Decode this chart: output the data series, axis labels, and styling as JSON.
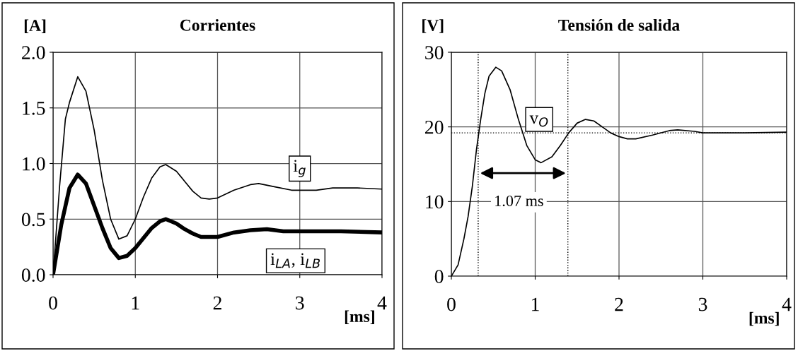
{
  "chart_data": [
    {
      "type": "line",
      "title": "Corrientes",
      "ylabel": "[A]",
      "xlabel": "[ms]",
      "xlim": [
        0,
        4
      ],
      "xticks": [
        0,
        1,
        2,
        3,
        4
      ],
      "ylim": [
        0,
        2
      ],
      "yticks": [
        {
          "value": 0,
          "label": "0.0"
        },
        0.5,
        {
          "value": 1,
          "label": "1.0"
        },
        1.5,
        {
          "value": 2,
          "label": "2.0"
        }
      ],
      "grid": true,
      "series": [
        {
          "color": "#000000",
          "x": [
            0,
            0.08,
            0.15,
            0.2,
            0.3,
            0.4,
            0.5,
            0.6,
            0.7,
            0.8,
            0.9,
            1.0,
            1.1,
            1.2,
            1.3,
            1.37,
            1.5,
            1.6,
            1.7,
            1.8,
            1.9,
            2.0,
            2.2,
            2.4,
            2.5,
            2.7,
            2.9,
            3.2,
            3.4,
            3.7,
            4
          ],
          "values": [
            0,
            0.8,
            1.4,
            1.55,
            1.78,
            1.65,
            1.3,
            0.85,
            0.5,
            0.32,
            0.35,
            0.5,
            0.7,
            0.87,
            0.97,
            0.99,
            0.93,
            0.84,
            0.75,
            0.69,
            0.68,
            0.69,
            0.76,
            0.81,
            0.82,
            0.79,
            0.76,
            0.76,
            0.78,
            0.78,
            0.77
          ]
        },
        {
          "color": "#000000",
          "x": [
            0,
            0.1,
            0.2,
            0.3,
            0.4,
            0.5,
            0.6,
            0.7,
            0.8,
            0.9,
            1.0,
            1.1,
            1.2,
            1.3,
            1.37,
            1.5,
            1.6,
            1.7,
            1.8,
            1.9,
            2.0,
            2.2,
            2.4,
            2.6,
            2.8,
            3.0,
            3.5,
            4
          ],
          "values": [
            0,
            0.45,
            0.78,
            0.9,
            0.82,
            0.62,
            0.42,
            0.24,
            0.15,
            0.17,
            0.24,
            0.33,
            0.42,
            0.48,
            0.5,
            0.46,
            0.41,
            0.37,
            0.34,
            0.34,
            0.34,
            0.38,
            0.4,
            0.41,
            0.39,
            0.39,
            0.39,
            0.38
          ]
        }
      ],
      "annotations": [
        {
          "text": "i$_{g}$",
          "x": 3.0,
          "y": 0.76
        },
        {
          "text": "i$_{LA}$, i$_{LB}$",
          "x": 2.95,
          "y": 0.39
        }
      ]
    },
    {
      "type": "line",
      "title": "Tensión de salida",
      "ylabel": "[V]",
      "xlabel": "[ms]",
      "xlim": [
        0,
        4
      ],
      "xticks": [
        0,
        1,
        2,
        3,
        4
      ],
      "ylim": [
        0,
        30
      ],
      "yticks": [
        0,
        10,
        20,
        30
      ],
      "grid": true,
      "series": [
        {
          "color": "#000000",
          "x": [
            0,
            0.08,
            0.15,
            0.2,
            0.25,
            0.3,
            0.35,
            0.4,
            0.45,
            0.53,
            0.6,
            0.7,
            0.8,
            0.9,
            1.0,
            1.07,
            1.2,
            1.3,
            1.4,
            1.5,
            1.6,
            1.7,
            1.8,
            1.9,
            2.0,
            2.1,
            2.2,
            2.4,
            2.6,
            2.7,
            2.9,
            3.0,
            3.5,
            4
          ],
          "values": [
            0,
            1.5,
            5,
            8,
            12,
            17,
            21,
            24.5,
            26.8,
            28,
            27.5,
            25,
            21,
            17.5,
            15.6,
            15.2,
            16,
            17.5,
            19.2,
            20.5,
            21,
            20.8,
            20,
            19.2,
            18.7,
            18.4,
            18.4,
            18.9,
            19.5,
            19.6,
            19.4,
            19.2,
            19.2,
            19.3
          ]
        }
      ],
      "ref_lines": [
        {
          "axis": "y",
          "value": 19.2,
          "line_style": "dotted"
        },
        {
          "axis": "x",
          "value": 0.32,
          "line_style": "dotted"
        },
        {
          "axis": "x",
          "value": 1.39,
          "line_style": "dotted"
        }
      ],
      "annotations": [
        "v$_{O}$",
        "1.07 ms"
      ]
    }
  ]
}
